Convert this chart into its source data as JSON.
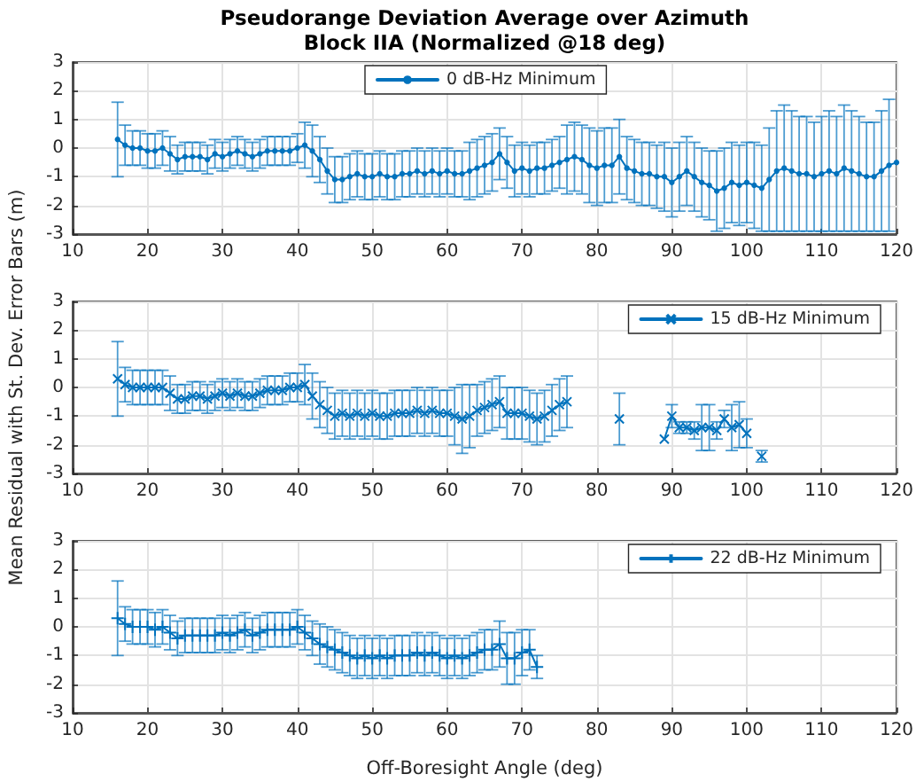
{
  "chart_data": [
    {
      "type": "line",
      "title": "Pseudorange Deviation Average over Azimuth",
      "subtitle": "Block IIA (Normalized @18 deg)",
      "x": [
        16,
        17,
        18,
        19,
        20,
        21,
        22,
        23,
        24,
        25,
        26,
        27,
        28,
        29,
        30,
        31,
        32,
        33,
        34,
        35,
        36,
        37,
        38,
        39,
        40,
        41,
        42,
        43,
        44,
        45,
        46,
        47,
        48,
        49,
        50,
        51,
        52,
        53,
        54,
        55,
        56,
        57,
        58,
        59,
        60,
        61,
        62,
        63,
        64,
        65,
        66,
        67,
        68,
        69,
        70,
        71,
        72,
        73,
        74,
        75,
        76,
        77,
        78,
        79,
        80,
        81,
        82,
        83,
        84,
        85,
        86,
        87,
        88,
        89,
        90,
        91,
        92,
        93,
        94,
        95,
        96,
        97,
        98,
        99,
        100,
        101,
        102,
        103,
        104,
        105,
        106,
        107,
        108,
        109,
        110,
        111,
        112,
        113,
        114,
        115,
        116,
        117,
        118,
        119,
        120
      ],
      "series": [
        {
          "name": "0 dB-Hz Minimum",
          "color": "#0072bd",
          "values": [
            0.3,
            0.1,
            0,
            0,
            -0.1,
            -0.1,
            0,
            -0.2,
            -0.4,
            -0.3,
            -0.3,
            -0.3,
            -0.4,
            -0.2,
            -0.3,
            -0.2,
            -0.1,
            -0.2,
            -0.3,
            -0.2,
            -0.1,
            -0.1,
            -0.1,
            -0.1,
            0,
            0.1,
            -0.1,
            -0.4,
            -0.8,
            -1.1,
            -1.1,
            -1,
            -0.9,
            -1,
            -1,
            -0.9,
            -1,
            -1,
            -0.9,
            -0.9,
            -0.8,
            -0.9,
            -0.8,
            -0.9,
            -0.8,
            -0.9,
            -0.9,
            -0.8,
            -0.7,
            -0.6,
            -0.5,
            -0.2,
            -0.5,
            -0.8,
            -0.7,
            -0.8,
            -0.7,
            -0.7,
            -0.6,
            -0.5,
            -0.4,
            -0.3,
            -0.4,
            -0.6,
            -0.7,
            -0.6,
            -0.6,
            -0.3,
            -0.7,
            -0.8,
            -0.9,
            -0.9,
            -1,
            -1,
            -1.2,
            -1,
            -0.8,
            -1,
            -1.2,
            -1.3,
            -1.5,
            -1.4,
            -1.2,
            -1.3,
            -1.2,
            -1.3,
            -1.4,
            -1.1,
            -0.8,
            -0.7,
            -0.8,
            -0.9,
            -0.9,
            -1,
            -0.9,
            -0.8,
            -0.9,
            -0.7,
            -0.8,
            -0.9,
            -1,
            -1,
            -0.8,
            -0.6,
            -0.5
          ],
          "errors": [
            1.3,
            0.7,
            0.6,
            0.6,
            0.6,
            0.6,
            0.6,
            0.6,
            0.5,
            0.5,
            0.5,
            0.5,
            0.5,
            0.5,
            0.5,
            0.5,
            0.5,
            0.5,
            0.5,
            0.5,
            0.5,
            0.5,
            0.5,
            0.5,
            0.5,
            0.8,
            0.9,
            0.8,
            0.8,
            0.8,
            0.8,
            0.8,
            0.8,
            0.8,
            0.8,
            0.8,
            0.8,
            0.8,
            0.8,
            0.8,
            0.8,
            0.8,
            0.8,
            0.8,
            0.8,
            0.8,
            0.8,
            1,
            1,
            1,
            1,
            0.9,
            0.9,
            0.9,
            0.9,
            0.9,
            0.9,
            0.9,
            0.9,
            0.9,
            1.2,
            1.2,
            1.2,
            1.3,
            1.3,
            1.3,
            1.3,
            1.3,
            1.1,
            1.1,
            1.1,
            1.1,
            1.1,
            1.2,
            1.2,
            1.2,
            1.2,
            1.2,
            1.2,
            1.2,
            1.4,
            1.4,
            1.4,
            1.4,
            1.4,
            1.5,
            1.5,
            1.8,
            2.1,
            2.2,
            2.1,
            2,
            2,
            1.9,
            2,
            2.1,
            2,
            2.2,
            2.1,
            2,
            1.9,
            1.9,
            2.1,
            2.3,
            null
          ]
        }
      ],
      "xlim": [
        10,
        120
      ],
      "xticks": [
        10,
        20,
        30,
        40,
        50,
        60,
        70,
        80,
        90,
        100,
        110,
        120
      ],
      "ylim": [
        -3,
        3
      ],
      "yticks": [
        -3,
        -2,
        -1,
        0,
        1,
        2,
        3
      ],
      "grid": true,
      "legend": "top",
      "marker": "circle",
      "line_style": "solid"
    },
    {
      "type": "line",
      "ylabel": "Mean Residual with St. Dev. Error Bars (m)",
      "x": [
        16,
        17,
        18,
        19,
        20,
        21,
        22,
        23,
        24,
        25,
        26,
        27,
        28,
        29,
        30,
        31,
        32,
        33,
        34,
        35,
        36,
        37,
        38,
        39,
        40,
        41,
        42,
        43,
        44,
        45,
        46,
        47,
        48,
        49,
        50,
        51,
        52,
        53,
        54,
        55,
        56,
        57,
        58,
        59,
        60,
        61,
        62,
        63,
        64,
        65,
        66,
        67,
        68,
        69,
        70,
        71,
        72,
        73,
        74,
        75,
        76,
        77,
        78,
        79,
        80,
        81,
        82,
        83,
        84,
        85,
        86,
        87,
        88,
        89,
        90,
        91,
        92,
        93,
        94,
        95,
        96,
        97,
        98,
        99,
        100,
        101,
        102
      ],
      "series": [
        {
          "name": "15 dB-Hz Minimum",
          "color": "#0072bd",
          "values": [
            0.3,
            0.1,
            0,
            0,
            0,
            0,
            0,
            -0.2,
            -0.4,
            -0.4,
            -0.3,
            -0.3,
            -0.4,
            -0.3,
            -0.2,
            -0.3,
            -0.2,
            -0.3,
            -0.3,
            -0.2,
            -0.1,
            -0.1,
            -0.1,
            0,
            0,
            0.1,
            -0.3,
            -0.6,
            -0.8,
            -1,
            -0.9,
            -1,
            -0.9,
            -1,
            -0.9,
            -1,
            -1,
            -0.9,
            -0.9,
            -0.9,
            -0.8,
            -0.9,
            -0.8,
            -0.9,
            -0.9,
            -1,
            -1.1,
            -1,
            -0.8,
            -0.7,
            -0.6,
            -0.5,
            -0.9,
            -0.9,
            -0.9,
            -1,
            -1.1,
            -1,
            -0.8,
            -0.6,
            -0.5,
            null,
            null,
            null,
            null,
            null,
            null,
            -1.1,
            null,
            null,
            null,
            null,
            null,
            -1.8,
            -1,
            -1.4,
            -1.4,
            -1.5,
            -1.4,
            -1.4,
            -1.5,
            -1.1,
            -1.4,
            -1.3,
            -1.6,
            null,
            -2.4
          ],
          "errors": [
            1.3,
            0.6,
            0.6,
            0.6,
            0.6,
            0.6,
            0.6,
            0.6,
            0.5,
            0.5,
            0.5,
            0.5,
            0.5,
            0.5,
            0.5,
            0.5,
            0.5,
            0.5,
            0.5,
            0.5,
            0.5,
            0.5,
            0.5,
            0.5,
            0.5,
            0.7,
            0.8,
            0.8,
            0.8,
            0.8,
            0.8,
            0.8,
            0.8,
            0.8,
            0.8,
            0.8,
            0.8,
            0.8,
            0.8,
            0.8,
            0.8,
            0.8,
            0.8,
            0.8,
            0.8,
            1,
            1.2,
            1.1,
            0.9,
            0.9,
            0.9,
            0.9,
            0.9,
            0.9,
            0.9,
            0.9,
            0.9,
            0.9,
            0.9,
            0.9,
            0.9,
            null,
            null,
            null,
            null,
            null,
            null,
            0.9,
            null,
            null,
            null,
            null,
            null,
            null,
            0.4,
            0.2,
            0.2,
            0.3,
            0.8,
            0.8,
            0.3,
            0.3,
            0.8,
            0.8,
            0.5,
            null,
            0.2
          ]
        }
      ],
      "xlim": [
        10,
        120
      ],
      "xticks": [
        10,
        20,
        30,
        40,
        50,
        60,
        70,
        80,
        90,
        100,
        110,
        120
      ],
      "ylim": [
        -3,
        3
      ],
      "yticks": [
        -3,
        -2,
        -1,
        0,
        1,
        2,
        3
      ],
      "grid": true,
      "legend": "top right",
      "marker": "cross",
      "line_style": "solid"
    },
    {
      "type": "line",
      "xlabel": "Off-Boresight Angle (deg)",
      "x": [
        16,
        17,
        18,
        19,
        20,
        21,
        22,
        23,
        24,
        25,
        26,
        27,
        28,
        29,
        30,
        31,
        32,
        33,
        34,
        35,
        36,
        37,
        38,
        39,
        40,
        41,
        42,
        43,
        44,
        45,
        46,
        47,
        48,
        49,
        50,
        51,
        52,
        53,
        54,
        55,
        56,
        57,
        58,
        59,
        60,
        61,
        62,
        63,
        64,
        65,
        66,
        67,
        68,
        69,
        70,
        71,
        72
      ],
      "series": [
        {
          "name": "22 dB-Hz Minimum",
          "color": "#0072bd",
          "values": [
            0.3,
            0.1,
            0,
            0,
            0,
            -0.1,
            0,
            -0.2,
            -0.4,
            -0.3,
            -0.3,
            -0.3,
            -0.3,
            -0.3,
            -0.2,
            -0.3,
            -0.2,
            -0.1,
            -0.3,
            -0.2,
            -0.1,
            -0.1,
            -0.1,
            -0.1,
            0,
            -0.2,
            -0.4,
            -0.6,
            -0.7,
            -0.8,
            -0.9,
            -1,
            -1.1,
            -1,
            -1.1,
            -1,
            -1.1,
            -1,
            -1,
            -1,
            -0.9,
            -1,
            -0.9,
            -1,
            -1.1,
            -1,
            -1.1,
            -1,
            -0.9,
            -0.8,
            -0.8,
            -0.6,
            -1.1,
            -1.1,
            -0.9,
            -0.8,
            -1.4
          ],
          "errors": [
            1.3,
            0.6,
            0.6,
            0.6,
            0.6,
            0.6,
            0.6,
            0.6,
            0.6,
            0.6,
            0.6,
            0.6,
            0.6,
            0.6,
            0.6,
            0.6,
            0.6,
            0.6,
            0.6,
            0.6,
            0.6,
            0.6,
            0.6,
            0.6,
            0.6,
            0.6,
            0.6,
            0.7,
            0.7,
            0.7,
            0.7,
            0.7,
            0.7,
            0.7,
            0.7,
            0.7,
            0.7,
            0.7,
            0.7,
            0.7,
            0.7,
            0.7,
            0.7,
            0.7,
            0.7,
            0.7,
            0.7,
            0.7,
            0.7,
            0.7,
            0.7,
            0.8,
            0.9,
            0.9,
            0.8,
            0.7,
            0.4
          ]
        }
      ],
      "xlim": [
        10,
        120
      ],
      "xticks": [
        10,
        20,
        30,
        40,
        50,
        60,
        70,
        80,
        90,
        100,
        110,
        120
      ],
      "ylim": [
        -3,
        3
      ],
      "yticks": [
        -3,
        -2,
        -1,
        0,
        1,
        2,
        3
      ],
      "grid": true,
      "legend": "top right",
      "marker": "plus",
      "line_style": "solid"
    }
  ]
}
